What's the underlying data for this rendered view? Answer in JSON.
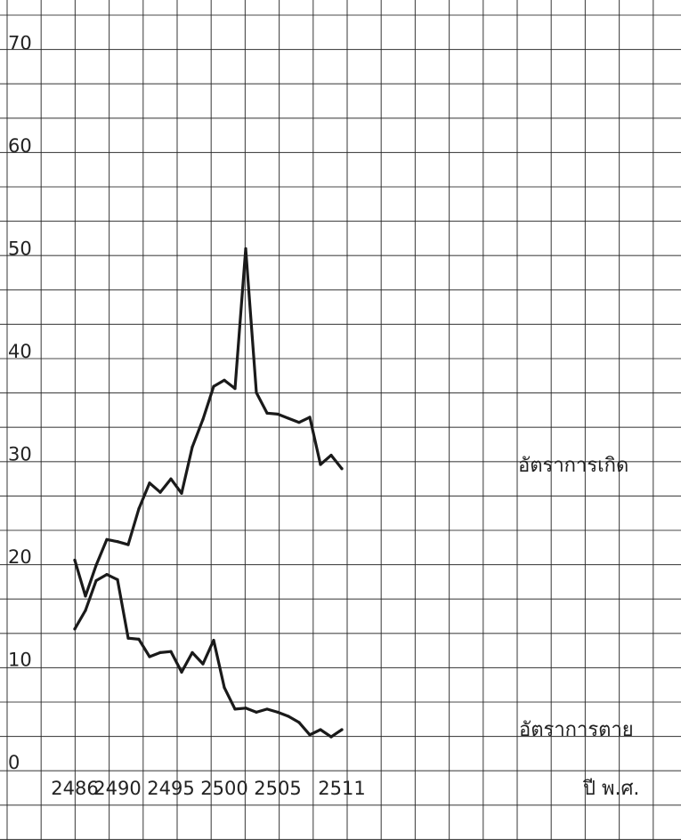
{
  "chart_data": {
    "type": "line",
    "title": "",
    "xlabel": "ปี พ.ศ.",
    "ylabel": "",
    "x_ticks": [
      "2486",
      "2490",
      "2495",
      "2500",
      "2505",
      "2511"
    ],
    "y_ticks": [
      "0",
      "10",
      "20",
      "30",
      "40",
      "50",
      "60",
      "70"
    ],
    "xlim": [
      2485,
      2516
    ],
    "ylim": [
      0,
      76
    ],
    "grid": true,
    "series": [
      {
        "name": "อัตราการเกิด",
        "x": [
          2486,
          2487,
          2488,
          2489,
          2490,
          2491,
          2492,
          2493,
          2494,
          2495,
          2496,
          2497,
          2498,
          2499,
          2500,
          2501,
          2502,
          2503,
          2504,
          2505,
          2506,
          2507,
          2508,
          2509,
          2510,
          2511
        ],
        "values": [
          21,
          17.5,
          20.5,
          23,
          22.8,
          22.5,
          26,
          28.5,
          27.6,
          28.9,
          27.5,
          32,
          34.7,
          37.9,
          38.5,
          37.7,
          51.3,
          37.3,
          35.3,
          35.2,
          34.8,
          34.4,
          34.9,
          30.3,
          31.2,
          29.9
        ]
      },
      {
        "name": "อัตราการตาย",
        "x": [
          2486,
          2487,
          2488,
          2489,
          2490,
          2491,
          2492,
          2493,
          2494,
          2495,
          2496,
          2497,
          2498,
          2499,
          2500,
          2501,
          2502,
          2503,
          2504,
          2505,
          2506,
          2507,
          2508,
          2509,
          2510,
          2511
        ],
        "values": [
          14.3,
          16.1,
          19.0,
          19.6,
          19.1,
          13.4,
          13.3,
          11.6,
          12.0,
          12.1,
          10.1,
          12.0,
          10.9,
          13.2,
          8.6,
          6.5,
          6.6,
          6.2,
          6.5,
          6.2,
          5.8,
          5.2,
          4.0,
          4.5,
          3.8,
          4.5
        ]
      }
    ]
  }
}
